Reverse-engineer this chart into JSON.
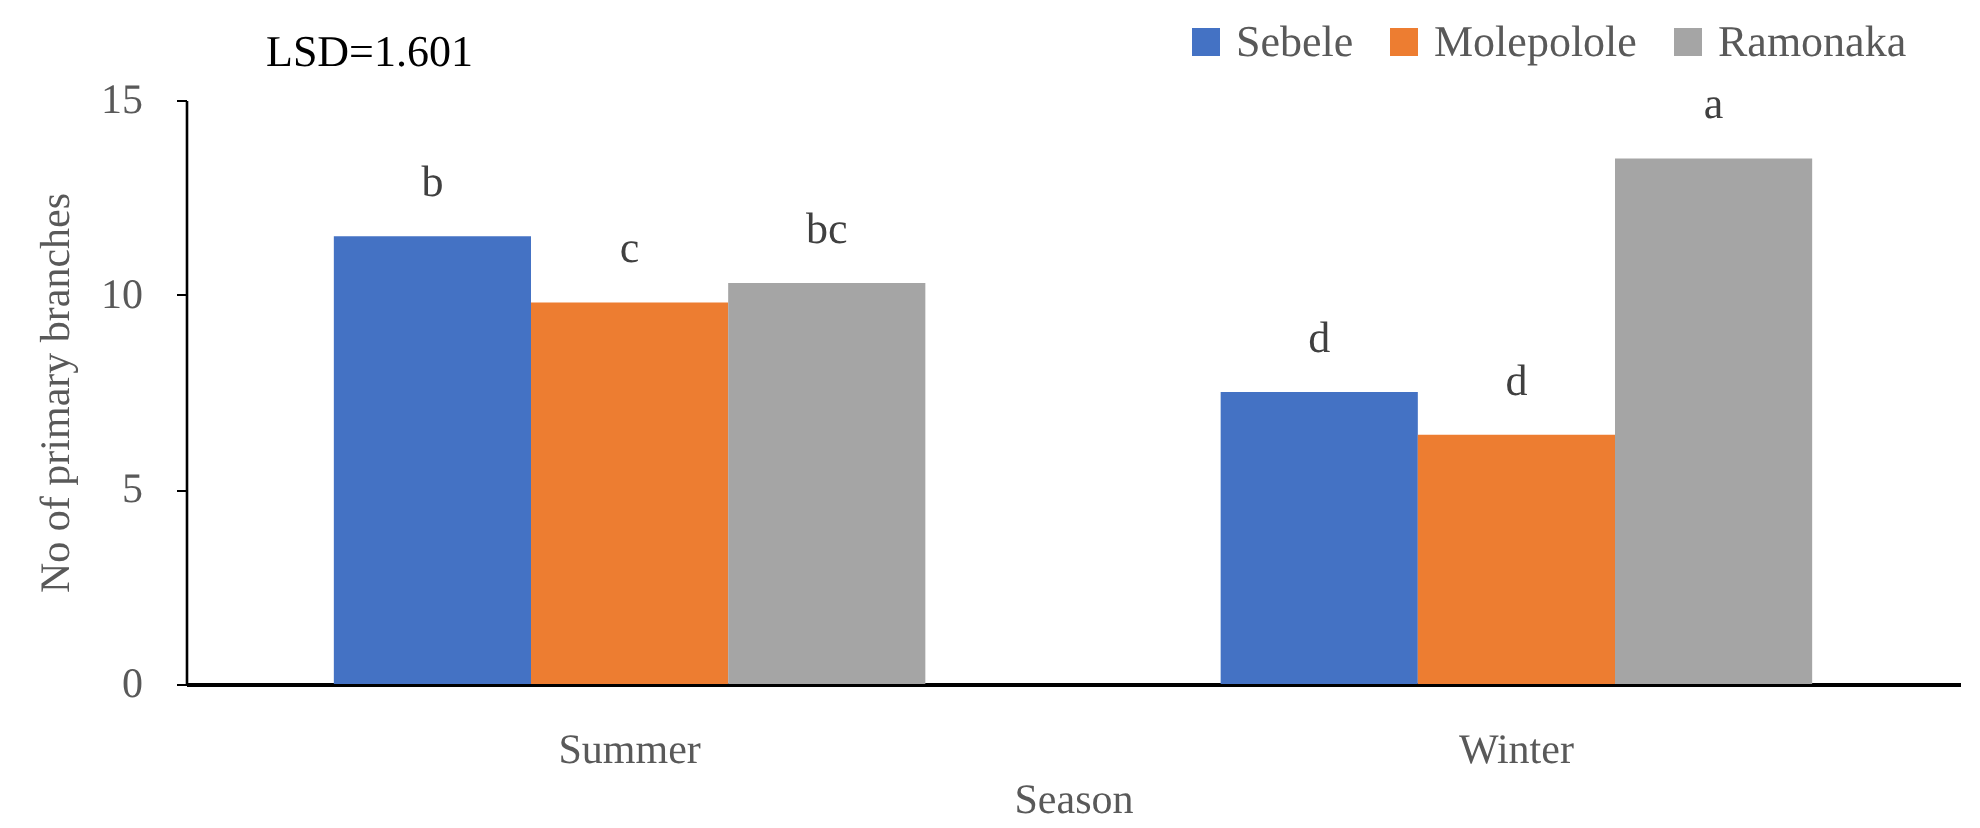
{
  "chart_data": {
    "type": "bar",
    "categories": [
      "Summer",
      "Winter"
    ],
    "xlabel": "Season",
    "ylabel": "No of primary branches",
    "annotations": [
      "LSD=1.601"
    ],
    "series": [
      {
        "name": "Sebele",
        "color": "#4472c4",
        "values": [
          11.5,
          7.5
        ],
        "value_labels": [
          "b",
          "d"
        ]
      },
      {
        "name": "Molepolole",
        "color": "#ed7d31",
        "values": [
          9.8,
          6.4
        ],
        "value_labels": [
          "c",
          "d"
        ]
      },
      {
        "name": "Ramonaka",
        "color": "#a5a5a5",
        "values": [
          10.3,
          13.5
        ],
        "value_labels": [
          "bc",
          "a"
        ]
      }
    ],
    "ylim": [
      0,
      15
    ],
    "yticks": [
      0,
      5,
      10,
      15
    ],
    "grid": false,
    "legend": "top right"
  }
}
